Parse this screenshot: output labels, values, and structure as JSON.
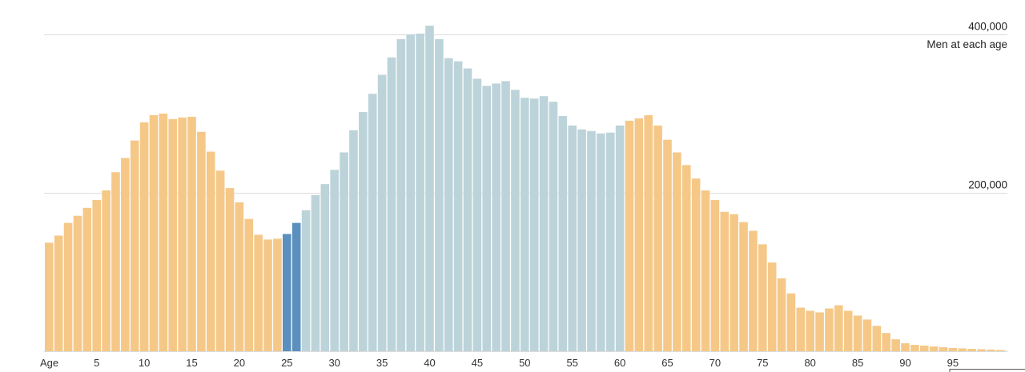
{
  "chart_data": {
    "type": "bar",
    "xlabel": "Age",
    "ylabel": "Men at each age",
    "ylim": [
      0,
      400000
    ],
    "yticks": [
      {
        "value": 200000,
        "label": "200,000"
      },
      {
        "value": 400000,
        "label": "400,000"
      }
    ],
    "xticks": [
      5,
      10,
      15,
      20,
      25,
      30,
      35,
      40,
      45,
      50,
      55,
      60,
      65,
      70,
      75,
      80,
      85,
      90,
      95
    ],
    "grid": true,
    "colors": {
      "outer_ages": "#f5c888",
      "middle_ages": "#bcd3da",
      "highlight": "#5b8fbd"
    },
    "color_ranges": [
      {
        "from": 0,
        "to": 24,
        "color": "outer_ages"
      },
      {
        "from": 25,
        "to": 26,
        "color": "highlight"
      },
      {
        "from": 27,
        "to": 60,
        "color": "middle_ages"
      },
      {
        "from": 61,
        "to": 100,
        "color": "outer_ages"
      }
    ],
    "x": [
      0,
      1,
      2,
      3,
      4,
      5,
      6,
      7,
      8,
      9,
      10,
      11,
      12,
      13,
      14,
      15,
      16,
      17,
      18,
      19,
      20,
      21,
      22,
      23,
      24,
      25,
      26,
      27,
      28,
      29,
      30,
      31,
      32,
      33,
      34,
      35,
      36,
      37,
      38,
      39,
      40,
      41,
      42,
      43,
      44,
      45,
      46,
      47,
      48,
      49,
      50,
      51,
      52,
      53,
      54,
      55,
      56,
      57,
      58,
      59,
      60,
      61,
      62,
      63,
      64,
      65,
      66,
      67,
      68,
      69,
      70,
      71,
      72,
      73,
      74,
      75,
      76,
      77,
      78,
      79,
      80,
      81,
      82,
      83,
      84,
      85,
      86,
      87,
      88,
      89,
      90,
      91,
      92,
      93,
      94,
      95,
      96,
      97,
      98,
      99,
      100
    ],
    "values": [
      137000,
      146000,
      162000,
      171000,
      181000,
      191000,
      203000,
      226000,
      244000,
      266000,
      289000,
      298000,
      300000,
      293000,
      295000,
      296000,
      277000,
      252000,
      228000,
      206000,
      188000,
      167000,
      147000,
      141000,
      142000,
      148000,
      162000,
      178000,
      197000,
      211000,
      229000,
      251000,
      279000,
      302000,
      325000,
      349000,
      371000,
      394000,
      400000,
      401000,
      411000,
      394000,
      370000,
      366000,
      357000,
      344000,
      335000,
      338000,
      341000,
      330000,
      320000,
      319000,
      322000,
      315000,
      297000,
      285000,
      280000,
      278000,
      275000,
      276000,
      285000,
      291000,
      294000,
      298000,
      285000,
      267000,
      251000,
      235000,
      218000,
      203000,
      191000,
      176000,
      173000,
      163000,
      152000,
      135000,
      112000,
      92000,
      73000,
      55000,
      51000,
      49000,
      54000,
      58000,
      51000,
      45000,
      40000,
      32000,
      23000,
      15000,
      10000,
      8000,
      7000,
      6000,
      5000,
      4000,
      3500,
      3000,
      2500,
      2000,
      1500
    ]
  }
}
